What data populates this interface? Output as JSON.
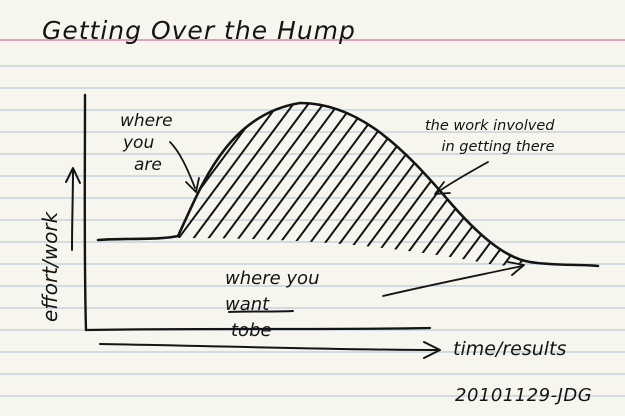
{
  "title": "Getting Over the Hump",
  "annotations": {
    "where_you_are": [
      "where",
      "you",
      "are"
    ],
    "work_involved": [
      "the work involved",
      "in getting there"
    ],
    "want_line1": "where you",
    "want_word": "want",
    "want_tail": "tobe"
  },
  "axes": {
    "y_label": "effort/work",
    "x_label": "time/results"
  },
  "signature": "20101129-JDG",
  "colors": {
    "paper": "#f6f5ee",
    "ruled_line": "#a9c2d6",
    "margin_line": "#d98aa5",
    "ink": "#141414"
  }
}
